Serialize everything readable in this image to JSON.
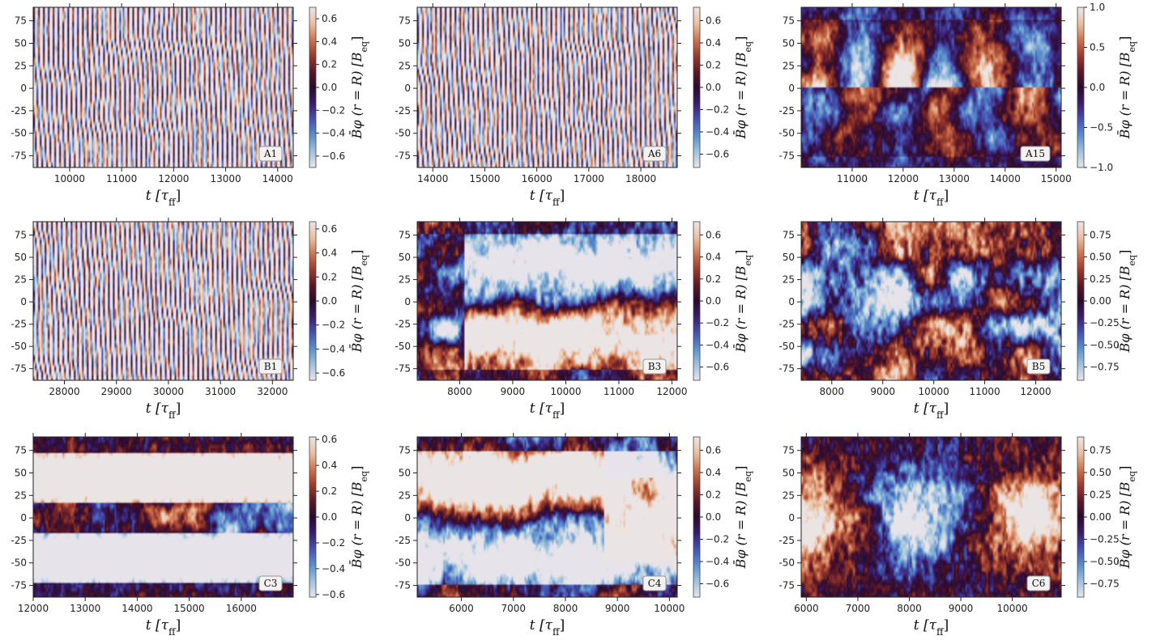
{
  "colormap": {
    "stops": [
      "#e6e3ea",
      "#9cc1dc",
      "#5a8fcc",
      "#4452b0",
      "#3a1d6b",
      "#2a0b2c",
      "#5a1828",
      "#9b3b2c",
      "#cd7450",
      "#ebbf9e",
      "#ebe4e5"
    ]
  },
  "chart_data": [
    {
      "type": "heatmap",
      "label": "A1",
      "pattern": "oscill",
      "seed": 1,
      "x_ticks": [
        10000,
        11000,
        12000,
        13000,
        14000
      ],
      "x_range": [
        9300,
        14300
      ],
      "y_ticks": [
        75,
        50,
        25,
        0,
        -25,
        -50,
        -75
      ],
      "y_range": [
        -88,
        90
      ],
      "c_ticks": [
        "0.6",
        "0.4",
        "0.2",
        "0.0",
        "−0.2",
        "−0.4",
        "−0.6"
      ],
      "c_range": [
        -0.7,
        0.7
      ],
      "xlabel": "t [τ",
      "xlabel_sub": "ff",
      "xlabel_end": "]",
      "cblabel": "B̄φ (r = R) [B",
      "cblabel_sub": "eq",
      "cblabel_end": "]"
    },
    {
      "type": "heatmap",
      "label": "A6",
      "pattern": "oscill",
      "seed": 2,
      "x_ticks": [
        14000,
        15000,
        16000,
        17000,
        18000
      ],
      "x_range": [
        13700,
        18700
      ],
      "y_ticks": [
        75,
        50,
        25,
        0,
        -25,
        -50,
        -75
      ],
      "y_range": [
        -88,
        90
      ],
      "c_ticks": [
        "0.6",
        "0.4",
        "0.2",
        "0.0",
        "−0.2",
        "−0.4",
        "−0.6"
      ],
      "c_range": [
        -0.72,
        0.72
      ],
      "xlabel": "t [τ",
      "xlabel_sub": "ff",
      "xlabel_end": "]",
      "cblabel": "B̄φ (r = R) [B",
      "cblabel_sub": "eq",
      "cblabel_end": "]"
    },
    {
      "type": "heatmap",
      "label": "A15",
      "pattern": "eqwave",
      "seed": 3,
      "x_ticks": [
        11000,
        12000,
        13000,
        14000,
        15000
      ],
      "x_range": [
        10000,
        15100
      ],
      "y_ticks": [
        75,
        50,
        25,
        0,
        -25,
        -50,
        -75
      ],
      "y_range": [
        -88,
        90
      ],
      "c_ticks": [
        "1.0",
        "0.5",
        "0.0",
        "−0.5",
        "−1.0"
      ],
      "c_range": [
        -1.0,
        1.0
      ],
      "xlabel": "t [τ",
      "xlabel_sub": "ff",
      "xlabel_end": "]",
      "cblabel": "B̄φ (r = R) [B",
      "cblabel_sub": "eq",
      "cblabel_end": "]"
    },
    {
      "type": "heatmap",
      "label": "B1",
      "pattern": "oscill",
      "seed": 4,
      "x_ticks": [
        28000,
        29000,
        30000,
        31000,
        32000
      ],
      "x_range": [
        27400,
        32400
      ],
      "y_ticks": [
        75,
        50,
        25,
        0,
        -25,
        -50,
        -75
      ],
      "y_range": [
        -88,
        90
      ],
      "c_ticks": [
        "0.6",
        "0.4",
        "0.2",
        "0.0",
        "−0.2",
        "−0.4",
        "−0.6"
      ],
      "c_range": [
        -0.66,
        0.66
      ],
      "xlabel": "t [τ",
      "xlabel_sub": "ff",
      "xlabel_end": "]",
      "cblabel": "B̄φ (r = R) [B",
      "cblabel_sub": "eq",
      "cblabel_end": "]"
    },
    {
      "type": "heatmap",
      "label": "B3",
      "pattern": "dipole_neg",
      "seed": 5,
      "x_ticks": [
        8000,
        9000,
        10000,
        11000,
        12000
      ],
      "x_range": [
        7200,
        12100
      ],
      "y_ticks": [
        75,
        50,
        25,
        0,
        -25,
        -50,
        -75
      ],
      "y_range": [
        -88,
        90
      ],
      "c_ticks": [
        "0.6",
        "0.4",
        "0.2",
        "0.0",
        "−0.2",
        "−0.4",
        "−0.6"
      ],
      "c_range": [
        -0.72,
        0.72
      ],
      "xlabel": "t [τ",
      "xlabel_sub": "ff",
      "xlabel_end": "]",
      "cblabel": "B̄φ (r = R) [B",
      "cblabel_sub": "eq",
      "cblabel_end": "]"
    },
    {
      "type": "heatmap",
      "label": "B5",
      "pattern": "weak",
      "seed": 6,
      "x_ticks": [
        8000,
        9000,
        10000,
        11000,
        12000
      ],
      "x_range": [
        7400,
        12500
      ],
      "y_ticks": [
        75,
        50,
        25,
        0,
        -25,
        -50,
        -75
      ],
      "y_range": [
        -88,
        90
      ],
      "c_ticks": [
        "0.75",
        "0.50",
        "0.25",
        "0.00",
        "−0.25",
        "−0.50",
        "−0.75"
      ],
      "c_range": [
        -0.9,
        0.9
      ],
      "xlabel": "t [τ",
      "xlabel_sub": "ff",
      "xlabel_end": "]",
      "cblabel": "B̄φ (r = R) [B",
      "cblabel_sub": "eq",
      "cblabel_end": "]"
    },
    {
      "type": "heatmap",
      "label": "C3",
      "pattern": "dipole_pos",
      "seed": 7,
      "x_ticks": [
        12000,
        13000,
        14000,
        15000,
        16000
      ],
      "x_range": [
        12000,
        17000
      ],
      "y_ticks": [
        75,
        50,
        25,
        0,
        -25,
        -50,
        -75
      ],
      "y_range": [
        -88,
        90
      ],
      "c_ticks": [
        "0.6",
        "0.4",
        "0.2",
        "0.0",
        "−0.2",
        "−0.4",
        "−0.6"
      ],
      "c_range": [
        -0.62,
        0.62
      ],
      "xlabel": "t [τ",
      "xlabel_sub": "ff",
      "xlabel_end": "]",
      "cblabel": "B̄φ (r = R) [B",
      "cblabel_sub": "eq",
      "cblabel_end": "]"
    },
    {
      "type": "heatmap",
      "label": "C4",
      "pattern": "dipole_flip",
      "seed": 8,
      "x_ticks": [
        6000,
        7000,
        8000,
        9000,
        10000
      ],
      "x_range": [
        5150,
        10150
      ],
      "y_ticks": [
        75,
        50,
        25,
        0,
        -25,
        -50,
        -75
      ],
      "y_range": [
        -88,
        90
      ],
      "c_ticks": [
        "0.6",
        "0.4",
        "0.2",
        "0.0",
        "−0.2",
        "−0.4",
        "−0.6"
      ],
      "c_range": [
        -0.72,
        0.72
      ],
      "xlabel": "t [τ",
      "xlabel_sub": "ff",
      "xlabel_end": "]",
      "cblabel": "B̄φ (r = R) [B",
      "cblabel_sub": "eq",
      "cblabel_end": "]"
    },
    {
      "type": "heatmap",
      "label": "C6",
      "pattern": "weak_eq",
      "seed": 9,
      "x_ticks": [
        6000,
        7000,
        8000,
        9000,
        10000
      ],
      "x_range": [
        5900,
        10950
      ],
      "y_ticks": [
        75,
        50,
        25,
        0,
        -25,
        -50,
        -75
      ],
      "y_range": [
        -88,
        90
      ],
      "c_ticks": [
        "0.75",
        "0.50",
        "0.25",
        "0.00",
        "−0.25",
        "−0.50",
        "−0.75"
      ],
      "c_range": [
        -0.9,
        0.9
      ],
      "xlabel": "t [τ",
      "xlabel_sub": "ff",
      "xlabel_end": "]",
      "cblabel": "B̄φ (r = R) [B",
      "cblabel_sub": "eq",
      "cblabel_end": "]"
    }
  ]
}
